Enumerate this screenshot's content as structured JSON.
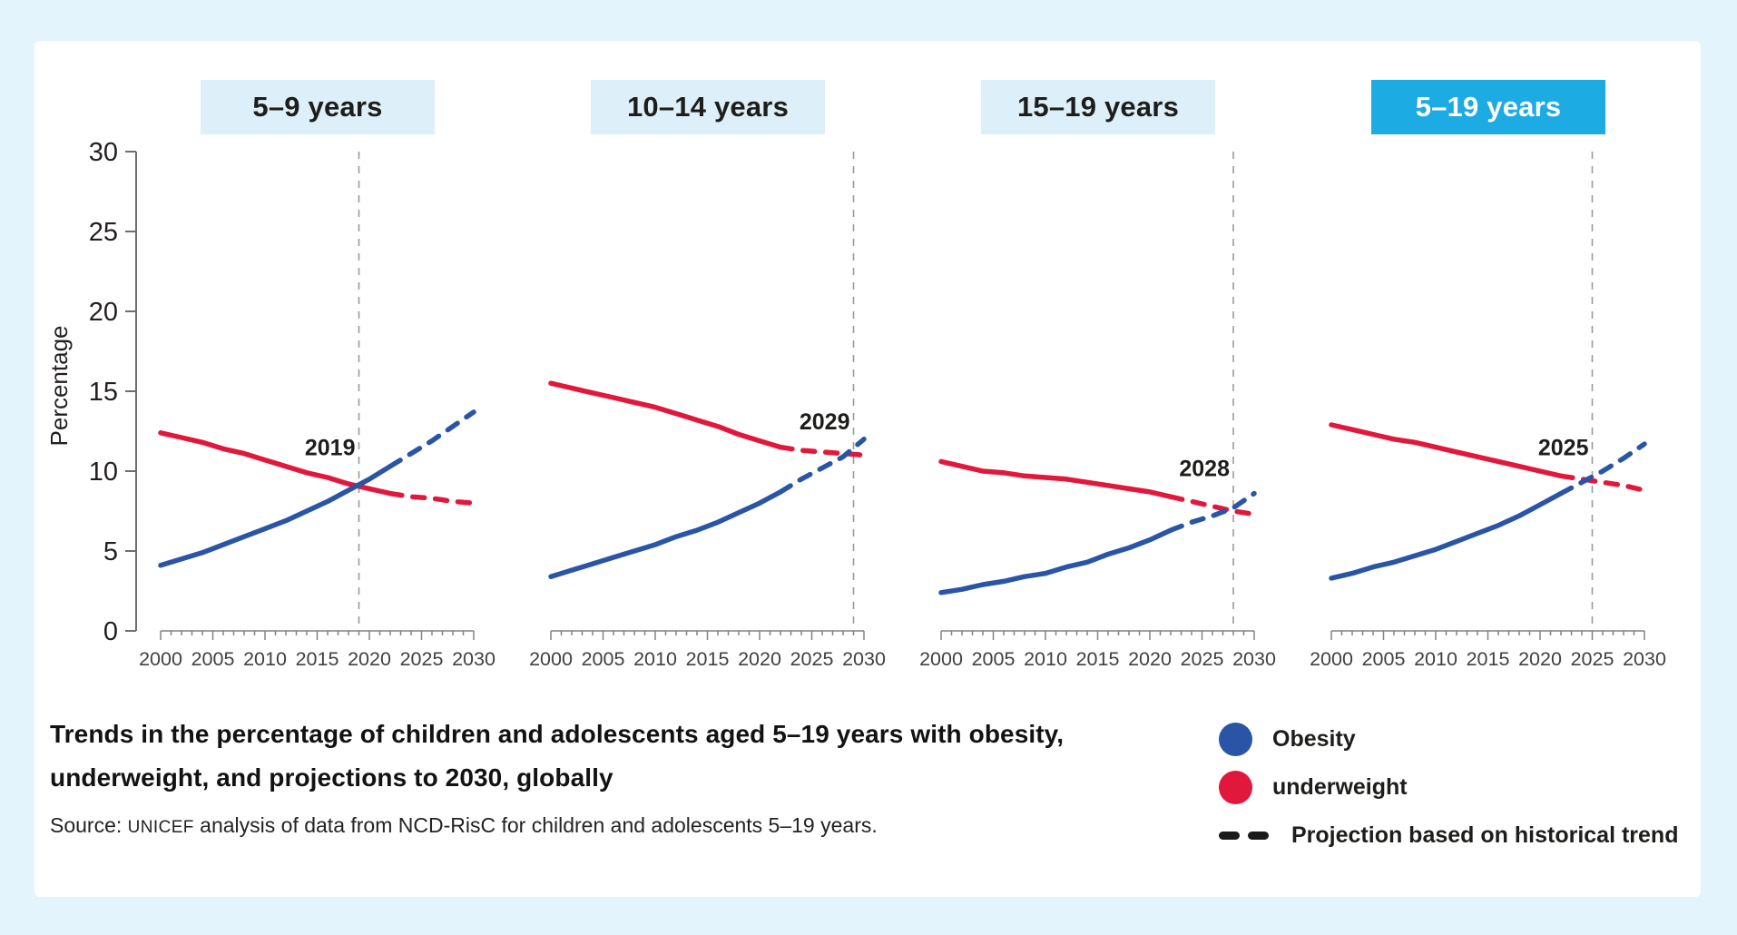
{
  "colors": {
    "obesity": "#2A55A6",
    "underweight": "#E2173C",
    "projection_dash": "#1A1A1A",
    "header_bg": "#DDEFF8",
    "active_header_bg": "#1CABE2",
    "page_bg": "#E3F4FC",
    "card_bg": "#FFFFFF",
    "axis": "#808285",
    "dash_line": "#9B9B9B"
  },
  "caption": {
    "title_line1": "Trends in the percentage of children and adolescents aged 5–19 years with obesity,",
    "title_line2": "underweight, and projections to 2030, globally",
    "source_prefix": "Source: ",
    "source_unicef": "UNICEF",
    "source_rest": " analysis of data from NCD-RisC for children and adolescents 5–19 years."
  },
  "legend": [
    {
      "label": "Obesity",
      "swatch": "circle",
      "color": "#2A55A6"
    },
    {
      "label": "underweight",
      "swatch": "circle",
      "color": "#E2173C"
    },
    {
      "label": "Projection based on historical trend",
      "swatch": "dash",
      "color": "#1A1A1A"
    }
  ],
  "chart_data": {
    "type": "line",
    "ylabel": "Percentage",
    "y_ticks": [
      0,
      5,
      10,
      15,
      20,
      25,
      30
    ],
    "y_range": [
      0,
      30
    ],
    "x_ticks": [
      2000,
      2005,
      2010,
      2015,
      2020,
      2025,
      2030
    ],
    "x_range": [
      2000,
      2030
    ],
    "legend_position": "bottom-right",
    "grid": false,
    "series_names": [
      "Obesity",
      "underweight"
    ],
    "panels": [
      {
        "label": "5–9 years",
        "active": false,
        "cross_year": 2019,
        "cross_label": "2019",
        "label_v": 11.0,
        "obesity_solid": [
          [
            2000,
            4.1
          ],
          [
            2002,
            4.5
          ],
          [
            2004,
            4.9
          ],
          [
            2006,
            5.4
          ],
          [
            2008,
            5.9
          ],
          [
            2010,
            6.4
          ],
          [
            2012,
            6.9
          ],
          [
            2014,
            7.5
          ],
          [
            2016,
            8.1
          ],
          [
            2018,
            8.8
          ],
          [
            2020,
            9.5
          ],
          [
            2022,
            10.3
          ]
        ],
        "obesity_projected": [
          [
            2022,
            10.3
          ],
          [
            2024,
            11.1
          ],
          [
            2026,
            11.9
          ],
          [
            2028,
            12.8
          ],
          [
            2030,
            13.7
          ]
        ],
        "underweight_solid": [
          [
            2000,
            12.4
          ],
          [
            2002,
            12.1
          ],
          [
            2004,
            11.8
          ],
          [
            2006,
            11.4
          ],
          [
            2008,
            11.1
          ],
          [
            2010,
            10.7
          ],
          [
            2012,
            10.3
          ],
          [
            2014,
            9.9
          ],
          [
            2016,
            9.6
          ],
          [
            2018,
            9.2
          ],
          [
            2020,
            8.9
          ],
          [
            2022,
            8.6
          ]
        ],
        "underweight_projected": [
          [
            2022,
            8.6
          ],
          [
            2024,
            8.4
          ],
          [
            2026,
            8.3
          ],
          [
            2028,
            8.1
          ],
          [
            2030,
            8.0
          ]
        ]
      },
      {
        "label": "10–14 years",
        "active": false,
        "cross_year": 2029,
        "cross_label": "2029",
        "label_v": 12.6,
        "obesity_solid": [
          [
            2000,
            3.4
          ],
          [
            2002,
            3.8
          ],
          [
            2004,
            4.2
          ],
          [
            2006,
            4.6
          ],
          [
            2008,
            5.0
          ],
          [
            2010,
            5.4
          ],
          [
            2012,
            5.9
          ],
          [
            2014,
            6.3
          ],
          [
            2016,
            6.8
          ],
          [
            2018,
            7.4
          ],
          [
            2020,
            8.0
          ],
          [
            2022,
            8.7
          ]
        ],
        "obesity_projected": [
          [
            2022,
            8.7
          ],
          [
            2024,
            9.5
          ],
          [
            2026,
            10.2
          ],
          [
            2028,
            10.9
          ],
          [
            2030,
            12.0
          ]
        ],
        "underweight_solid": [
          [
            2000,
            15.5
          ],
          [
            2002,
            15.2
          ],
          [
            2004,
            14.9
          ],
          [
            2006,
            14.6
          ],
          [
            2008,
            14.3
          ],
          [
            2010,
            14.0
          ],
          [
            2012,
            13.6
          ],
          [
            2014,
            13.2
          ],
          [
            2016,
            12.8
          ],
          [
            2018,
            12.3
          ],
          [
            2020,
            11.9
          ],
          [
            2022,
            11.5
          ]
        ],
        "underweight_projected": [
          [
            2022,
            11.5
          ],
          [
            2024,
            11.3
          ],
          [
            2026,
            11.2
          ],
          [
            2028,
            11.1
          ],
          [
            2030,
            11.0
          ]
        ]
      },
      {
        "label": "15–19 years",
        "active": false,
        "cross_year": 2028,
        "cross_label": "2028",
        "label_v": 9.7,
        "obesity_solid": [
          [
            2000,
            2.4
          ],
          [
            2002,
            2.6
          ],
          [
            2004,
            2.9
          ],
          [
            2006,
            3.1
          ],
          [
            2008,
            3.4
          ],
          [
            2010,
            3.6
          ],
          [
            2012,
            4.0
          ],
          [
            2014,
            4.3
          ],
          [
            2016,
            4.8
          ],
          [
            2018,
            5.2
          ],
          [
            2020,
            5.7
          ],
          [
            2022,
            6.3
          ]
        ],
        "obesity_projected": [
          [
            2022,
            6.3
          ],
          [
            2024,
            6.8
          ],
          [
            2026,
            7.2
          ],
          [
            2028,
            7.7
          ],
          [
            2030,
            8.6
          ]
        ],
        "underweight_solid": [
          [
            2000,
            10.6
          ],
          [
            2002,
            10.3
          ],
          [
            2004,
            10.0
          ],
          [
            2006,
            9.9
          ],
          [
            2008,
            9.7
          ],
          [
            2010,
            9.6
          ],
          [
            2012,
            9.5
          ],
          [
            2014,
            9.3
          ],
          [
            2016,
            9.1
          ],
          [
            2018,
            8.9
          ],
          [
            2020,
            8.7
          ],
          [
            2022,
            8.4
          ]
        ],
        "underweight_projected": [
          [
            2022,
            8.4
          ],
          [
            2024,
            8.1
          ],
          [
            2026,
            7.8
          ],
          [
            2028,
            7.5
          ],
          [
            2030,
            7.3
          ]
        ]
      },
      {
        "label": "5–19 years",
        "active": true,
        "cross_year": 2025,
        "cross_label": "2025",
        "label_v": 11.0,
        "obesity_solid": [
          [
            2000,
            3.3
          ],
          [
            2002,
            3.6
          ],
          [
            2004,
            4.0
          ],
          [
            2006,
            4.3
          ],
          [
            2008,
            4.7
          ],
          [
            2010,
            5.1
          ],
          [
            2012,
            5.6
          ],
          [
            2014,
            6.1
          ],
          [
            2016,
            6.6
          ],
          [
            2018,
            7.2
          ],
          [
            2020,
            7.9
          ],
          [
            2022,
            8.6
          ]
        ],
        "obesity_projected": [
          [
            2022,
            8.6
          ],
          [
            2024,
            9.3
          ],
          [
            2026,
            10.0
          ],
          [
            2028,
            10.8
          ],
          [
            2030,
            11.7
          ]
        ],
        "underweight_solid": [
          [
            2000,
            12.9
          ],
          [
            2002,
            12.6
          ],
          [
            2004,
            12.3
          ],
          [
            2006,
            12.0
          ],
          [
            2008,
            11.8
          ],
          [
            2010,
            11.5
          ],
          [
            2012,
            11.2
          ],
          [
            2014,
            10.9
          ],
          [
            2016,
            10.6
          ],
          [
            2018,
            10.3
          ],
          [
            2020,
            10.0
          ],
          [
            2022,
            9.7
          ]
        ],
        "underweight_projected": [
          [
            2022,
            9.7
          ],
          [
            2024,
            9.5
          ],
          [
            2026,
            9.3
          ],
          [
            2028,
            9.1
          ],
          [
            2030,
            8.8
          ]
        ]
      }
    ]
  }
}
